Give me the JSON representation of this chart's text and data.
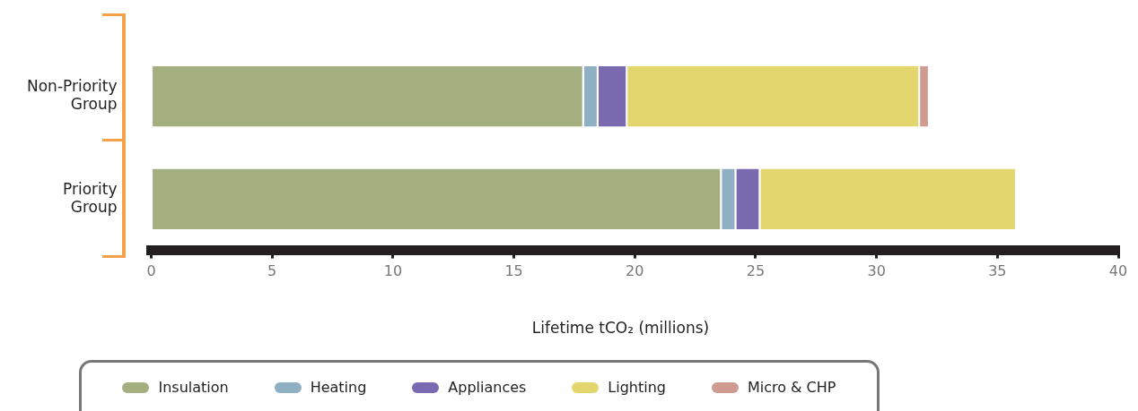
{
  "chart_data": {
    "type": "bar",
    "orientation": "horizontal",
    "stacked": true,
    "categories": [
      "Non-Priority Group",
      "Priority Group"
    ],
    "series": [
      {
        "name": "Insulation",
        "color": "#a4af7f",
        "values": [
          17.9,
          23.6
        ]
      },
      {
        "name": "Heating",
        "color": "#8fb0c3",
        "values": [
          0.6,
          0.6
        ]
      },
      {
        "name": "Appliances",
        "color": "#7a6aaf",
        "values": [
          1.2,
          1.0
        ]
      },
      {
        "name": "Lighting",
        "color": "#e3d66e",
        "values": [
          12.1,
          10.6
        ]
      },
      {
        "name": "Micro & CHP",
        "color": "#cf9b91",
        "values": [
          0.4,
          0
        ]
      }
    ],
    "xlabel": "Lifetime tCO₂ (millions)",
    "xlim": [
      0,
      40
    ],
    "xticks": [
      0,
      5,
      10,
      15,
      20,
      25,
      30,
      35,
      40
    ],
    "grid": false,
    "legend": "bottom"
  }
}
